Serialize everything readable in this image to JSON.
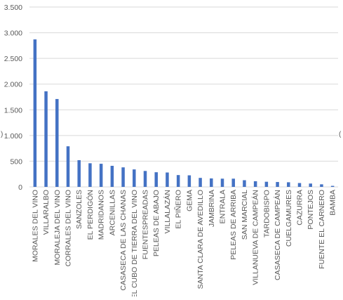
{
  "chart_data": {
    "type": "bar",
    "title": "",
    "xlabel": "",
    "ylabel": "",
    "ylim": [
      0,
      3500
    ],
    "yticks": [
      0,
      500,
      1000,
      1500,
      2000,
      2500,
      3000,
      3500
    ],
    "ytick_labels": [
      "0",
      "500",
      "1.000",
      "1.500",
      "2.000",
      "2.500",
      "3.000",
      "3.500"
    ],
    "grid": true,
    "legend": "none",
    "bar_color": "#4472c4",
    "grid_color": "#d9d9d9",
    "categories": [
      "MORALES DEL VINO",
      "VILLARALBO",
      "MORALEJA DEL VINO",
      "CORRALES DEL VINO",
      "SANZOLES",
      "EL PERDIGÓN",
      "MADRIDANOS",
      "ARCENILLAS",
      "CASASECA DE LAS CHANAS",
      "EL CUBO DE TIERRA DEL VINO",
      "FUENTESPREADAS",
      "PELEAS DE ABAJO",
      "VILLALAZÁN",
      "EL PIÑERO",
      "GEMA",
      "SANTA CLARA DE AVEDILLO",
      "JAMBRINA",
      "ENTRALA",
      "PELEAS DE ARRIBA",
      "SAN MARCIAL",
      "VILLANUEVA DE CAMPEÁN",
      "TARDOBISPO",
      "CASASECA DE CAMPEÁN",
      "CUELGAMURES",
      "CAZURRA",
      "PONTEJOS",
      "FUENTE EL CARNERO",
      "BAMBA"
    ],
    "values": [
      2870,
      1860,
      1710,
      790,
      520,
      460,
      450,
      410,
      380,
      340,
      310,
      285,
      280,
      230,
      225,
      175,
      165,
      160,
      160,
      130,
      110,
      100,
      95,
      90,
      75,
      65,
      50,
      20
    ]
  },
  "edge_marks": {
    "left": ")",
    "right": "("
  }
}
